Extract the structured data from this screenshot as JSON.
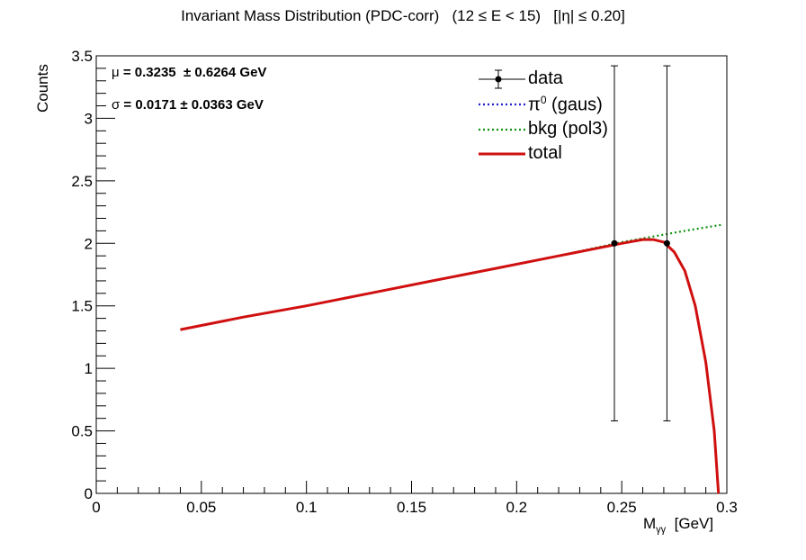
{
  "title": "Invariant Mass Distribution (PDC-corr)   (12 ≤ E < 15)   [|η| ≤ 0.20]",
  "ylabel": "Counts",
  "xlabel_main": "M",
  "xlabel_sub": "γγ",
  "xlabel_unit": "  [GeV]",
  "fit_stats": {
    "mu_symbol": "μ",
    "mu_text": " = 0.3235  ± 0.6264 GeV",
    "sigma_symbol": "σ",
    "sigma_text": " = 0.0171 ± 0.0363 GeV"
  },
  "legend": [
    {
      "key": "data",
      "label": "data",
      "style": "marker-errorbar"
    },
    {
      "key": "pi0",
      "label_main": "π",
      "label_sup": "0",
      "label_rest": " (gaus)",
      "style": "dotted",
      "color": "#1f1fd0"
    },
    {
      "key": "bkg",
      "label": "bkg (pol3)",
      "style": "dotted",
      "color": "#109010"
    },
    {
      "key": "total",
      "label": "total",
      "style": "solid",
      "color": "#d01010"
    }
  ],
  "chart_data": {
    "type": "scatter",
    "xlim": [
      0,
      0.3
    ],
    "ylim": [
      0,
      3.5
    ],
    "x_ticks": [
      0,
      0.05,
      0.1,
      0.15,
      0.2,
      0.25,
      0.3
    ],
    "x_tick_labels": [
      "0",
      "0.05",
      "0.1",
      "0.15",
      "0.2",
      "0.25",
      "0.3"
    ],
    "y_ticks": [
      0,
      0.5,
      1,
      1.5,
      2,
      2.5,
      3,
      3.5
    ],
    "y_tick_labels": [
      "0",
      "0.5",
      "1",
      "1.5",
      "2",
      "2.5",
      "3",
      "3.5"
    ],
    "grid": false,
    "legend_position": "top-right",
    "series": [
      {
        "name": "data",
        "kind": "points",
        "x": [
          0.2465,
          0.2715
        ],
        "y": [
          2,
          2
        ],
        "err_low": [
          1.42,
          1.42
        ],
        "err_high": [
          1.42,
          1.42
        ],
        "color": "#000000"
      },
      {
        "name": "bkg (pol3)",
        "kind": "curve",
        "style": "dotted",
        "color": "#109010",
        "x": [
          0.04,
          0.07,
          0.1,
          0.13,
          0.16,
          0.19,
          0.22,
          0.25,
          0.28,
          0.298
        ],
        "y": [
          1.31,
          1.41,
          1.5,
          1.6,
          1.7,
          1.8,
          1.9,
          2.01,
          2.1,
          2.15
        ]
      },
      {
        "name": "total",
        "kind": "curve",
        "style": "solid",
        "color": "#d01010",
        "x": [
          0.04,
          0.07,
          0.1,
          0.13,
          0.16,
          0.19,
          0.22,
          0.25,
          0.26,
          0.265,
          0.27,
          0.275,
          0.28,
          0.285,
          0.29,
          0.294,
          0.296
        ],
        "y": [
          1.31,
          1.41,
          1.5,
          1.6,
          1.7,
          1.8,
          1.9,
          2.0,
          2.03,
          2.03,
          2.01,
          1.93,
          1.78,
          1.5,
          1.05,
          0.5,
          0.0
        ]
      }
    ]
  }
}
